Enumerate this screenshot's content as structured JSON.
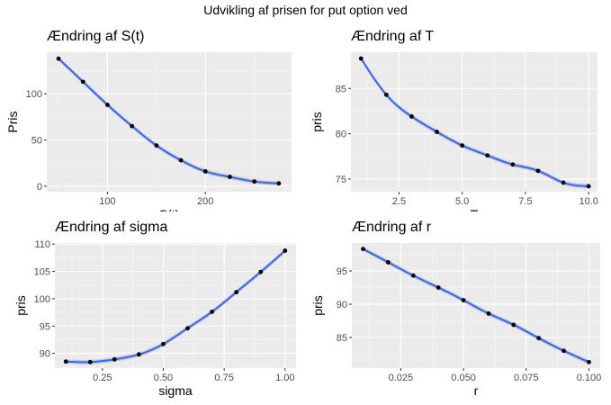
{
  "figure_title": "Udvikling af prisen for put option ved",
  "chart_data": [
    {
      "type": "scatter",
      "title": "Ændring af S(t)",
      "xlabel": "S(t)",
      "ylabel": "Pris",
      "xlim": [
        38,
        288
      ],
      "ylim": [
        -6,
        145
      ],
      "xticks": [
        100,
        200
      ],
      "yticks": [
        0,
        50,
        100
      ],
      "xtick_labels": [
        "100",
        "200"
      ],
      "ytick_labels": [
        "0",
        "50",
        "100"
      ],
      "grid": true,
      "smooth": true,
      "series": [
        {
          "x": [
            50,
            75,
            100,
            125,
            150,
            175,
            200,
            225,
            250,
            275
          ],
          "y": [
            138,
            113,
            88,
            65,
            44,
            28,
            16,
            10,
            5,
            3
          ]
        }
      ]
    },
    {
      "type": "scatter",
      "title": "Ændring af T",
      "xlabel": "T",
      "ylabel": "pris",
      "xlim": [
        0.6,
        10.35
      ],
      "ylim": [
        73.6,
        89.0
      ],
      "xticks": [
        2.5,
        5.0,
        7.5,
        10.0
      ],
      "yticks": [
        75,
        80,
        85
      ],
      "xtick_labels": [
        "2.5",
        "5.0",
        "7.5",
        "10.0"
      ],
      "ytick_labels": [
        "75",
        "80",
        "85"
      ],
      "grid": true,
      "smooth": true,
      "series": [
        {
          "x": [
            1,
            2,
            3,
            4,
            5,
            6,
            7,
            8,
            9,
            10
          ],
          "y": [
            88.3,
            84.3,
            81.9,
            80.2,
            78.7,
            77.6,
            76.6,
            75.9,
            74.6,
            74.2
          ]
        }
      ]
    },
    {
      "type": "scatter",
      "title": "Ændring af sigma",
      "xlabel": "sigma",
      "ylabel": "pris",
      "xlim": [
        0.055,
        1.045
      ],
      "ylim": [
        87.3,
        110.2
      ],
      "xticks": [
        0.25,
        0.5,
        0.75,
        1.0
      ],
      "yticks": [
        90,
        95,
        100,
        105,
        110
      ],
      "xtick_labels": [
        "0.25",
        "0.50",
        "0.75",
        "1.00"
      ],
      "ytick_labels": [
        "90",
        "95",
        "100",
        "105",
        "110"
      ],
      "grid": true,
      "smooth": true,
      "series": [
        {
          "x": [
            0.1,
            0.2,
            0.3,
            0.4,
            0.5,
            0.6,
            0.7,
            0.8,
            0.9,
            1.0
          ],
          "y": [
            88.5,
            88.4,
            88.9,
            89.8,
            91.7,
            94.6,
            97.6,
            101.2,
            104.9,
            108.8
          ]
        }
      ]
    },
    {
      "type": "scatter",
      "title": "Ændring af r",
      "xlabel": "r",
      "ylabel": "pris",
      "xlim": [
        0.0055,
        0.1045
      ],
      "ylim": [
        80.4,
        99.2
      ],
      "xticks": [
        0.025,
        0.05,
        0.075,
        0.1
      ],
      "yticks": [
        85,
        90,
        95
      ],
      "xtick_labels": [
        "0.025",
        "0.050",
        "0.075",
        "0.100"
      ],
      "ytick_labels": [
        "85",
        "90",
        "95"
      ],
      "grid": true,
      "smooth": true,
      "series": [
        {
          "x": [
            0.01,
            0.02,
            0.03,
            0.04,
            0.05,
            0.06,
            0.07,
            0.08,
            0.09,
            0.1
          ],
          "y": [
            98.3,
            96.3,
            94.3,
            92.5,
            90.6,
            88.6,
            86.9,
            84.9,
            83.0,
            81.3
          ]
        }
      ]
    }
  ]
}
